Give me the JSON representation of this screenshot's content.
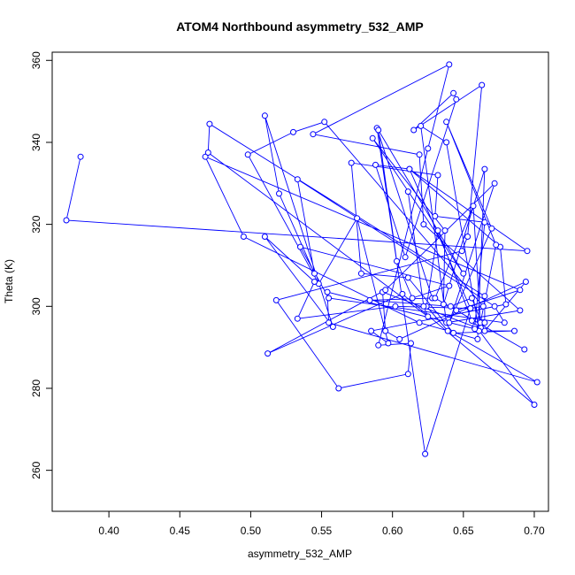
{
  "chart_data": {
    "type": "line",
    "title": "ATOM4 Northbound asymmetry_532_AMP",
    "xlabel": "asymmetry_532_AMP",
    "ylabel": "Theta (K)",
    "xlim": [
      0.36,
      0.71
    ],
    "ylim": [
      250,
      362
    ],
    "xticks": [
      "0.40",
      "0.45",
      "0.50",
      "0.55",
      "0.60",
      "0.65",
      "0.70"
    ],
    "yticks": [
      "260",
      "280",
      "300",
      "320",
      "340",
      "360"
    ],
    "grid": false,
    "legend": "none",
    "color": "#0000ff",
    "series": [
      {
        "x": [
          0.38,
          0.37,
          0.695,
          0.612,
          0.588,
          0.609,
          0.645,
          0.643,
          0.615,
          0.663,
          0.653,
          0.649,
          0.518,
          0.562,
          0.611,
          0.613,
          0.59,
          0.625,
          0.64,
          0.544,
          0.619,
          0.622,
          0.69,
          0.638,
          0.62,
          0.638,
          0.661,
          0.686,
          0.643,
          0.611,
          0.578,
          0.571,
          0.632,
          0.63,
          0.665,
          0.658,
          0.593,
          0.595,
          0.605,
          0.694,
          0.665,
          0.656,
          0.641,
          0.584,
          0.628,
          0.589,
          0.623,
          0.655,
          0.612,
          0.676,
          0.68,
          0.585,
          0.597,
          0.575,
          0.548,
          0.498,
          0.53,
          0.552,
          0.664,
          0.655,
          0.602,
          0.533,
          0.545,
          0.51,
          0.558,
          0.51,
          0.52,
          0.545,
          0.533,
          0.672,
          0.679,
          0.555,
          0.535,
          0.64,
          0.614,
          0.603,
          0.59,
          0.65,
          0.586,
          0.637,
          0.636,
          0.665,
          0.66,
          0.619,
          0.495,
          0.468,
          0.69,
          0.645,
          0.693,
          0.63,
          0.657,
          0.662,
          0.673,
          0.638,
          0.67,
          0.64,
          0.672,
          0.595,
          0.512,
          0.607,
          0.7,
          0.656,
          0.632,
          0.624,
          0.639,
          0.702,
          0.555,
          0.554,
          0.658,
          0.665,
          0.665,
          0.471,
          0.47,
          0.625,
          0.622,
          0.611
        ],
        "y": [
          336.5,
          321.0,
          313.5,
          333.5,
          334.5,
          312.0,
          350.5,
          352.0,
          343.0,
          354.0,
          317.0,
          313.5,
          301.5,
          280.0,
          283.5,
          291.0,
          290.5,
          338.5,
          359.0,
          342.0,
          337.0,
          320.0,
          299.0,
          296.0,
          344.0,
          340.0,
          294.0,
          294.0,
          293.5,
          307.0,
          308.0,
          335.0,
          332.0,
          322.0,
          320.5,
          295.0,
          303.5,
          294.0,
          292.0,
          306.0,
          294.0,
          302.0,
          300.0,
          301.5,
          302.0,
          343.5,
          264.0,
          299.5,
          333.5,
          314.5,
          300.5,
          294.0,
          291.0,
          321.5,
          305.5,
          337.0,
          342.5,
          345.0,
          300.0,
          299.5,
          300.0,
          297.0,
          306.0,
          317.0,
          295.0,
          346.5,
          327.5,
          308.0,
          331.0,
          300.0,
          296.0,
          302.0,
          314.5,
          305.0,
          302.0,
          311.0,
          343.0,
          308.0,
          341.0,
          318.5,
          300.5,
          333.5,
          292.0,
          296.0,
          317.0,
          336.5,
          304.0,
          299.0,
          289.5,
          302.0,
          324.5,
          296.0,
          315.0,
          345.0,
          319.0,
          296.0,
          330.0,
          304.0,
          288.5,
          303.0,
          276.0,
          296.5,
          318.5,
          300.0,
          294.0,
          281.5,
          296.0,
          303.5,
          294.5,
          296.0,
          302.5,
          344.5,
          337.5,
          297.5,
          300.0,
          328.0
        ]
      }
    ]
  }
}
